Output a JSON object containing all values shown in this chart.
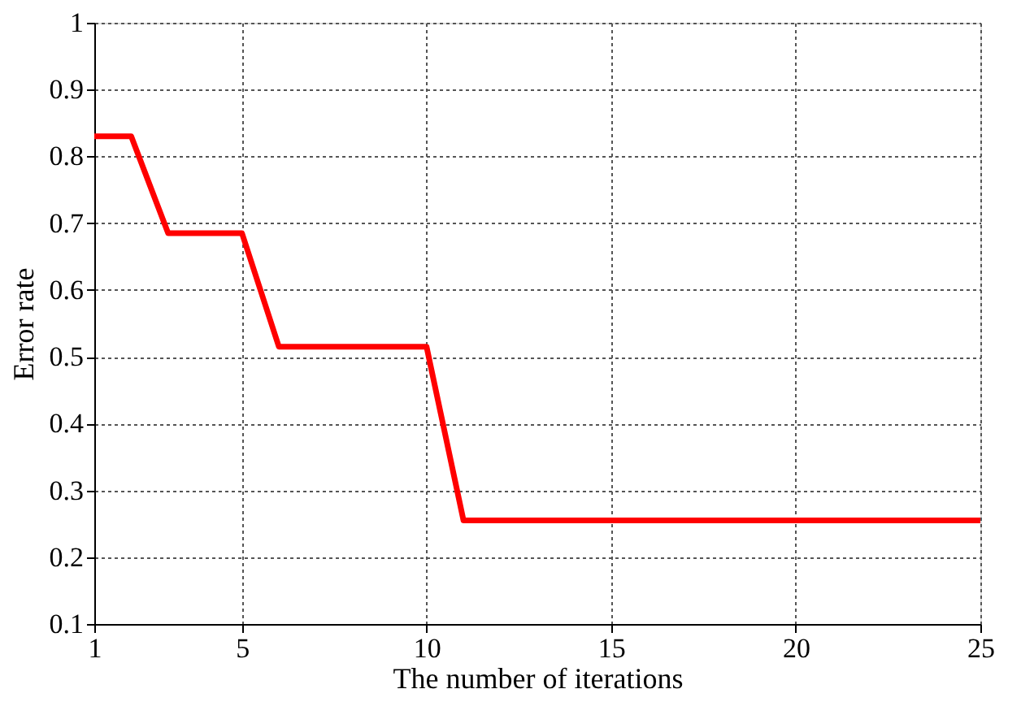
{
  "chart_data": {
    "type": "line",
    "xlabel": "The number of iterations",
    "ylabel": "Error rate",
    "x": [
      1,
      2,
      3,
      5,
      6,
      10,
      11,
      25
    ],
    "series": [
      {
        "color": "#ff0000",
        "values": [
          0.83,
          0.83,
          0.685,
          0.685,
          0.515,
          0.515,
          0.255,
          0.255
        ]
      }
    ],
    "xlim": [
      1,
      25
    ],
    "xticks": [
      1,
      5,
      10,
      15,
      20,
      25
    ],
    "ylim": [
      0.1,
      1
    ],
    "yticks": [
      0.1,
      0.2,
      0.3,
      0.4,
      0.5,
      0.6,
      0.7,
      0.8,
      0.9,
      1
    ],
    "grid": true,
    "line_style": "solid",
    "marker": "none"
  }
}
